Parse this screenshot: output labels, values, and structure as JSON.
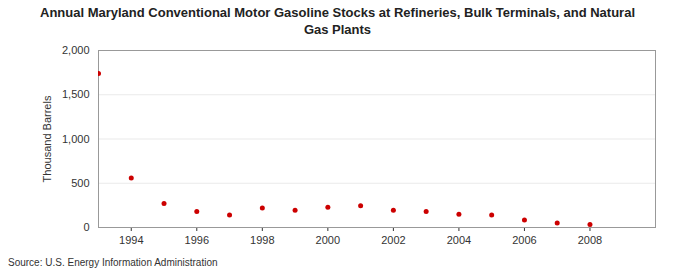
{
  "chart_data": {
    "type": "scatter",
    "title": "Annual Maryland Conventional Motor Gasoline Stocks at Refineries, Bulk Terminals, and Natural Gas Plants",
    "y_label": "Thousand Barrels",
    "caption": "Source: U.S. Energy Information Administration",
    "x": [
      1993,
      1994,
      1995,
      1996,
      1997,
      1998,
      1999,
      2000,
      2001,
      2002,
      2003,
      2004,
      2005,
      2006,
      2007,
      2008
    ],
    "values": [
      1740,
      560,
      270,
      180,
      140,
      220,
      195,
      230,
      245,
      195,
      180,
      150,
      140,
      85,
      50,
      35
    ],
    "color": "#cc0000",
    "marker": "circle",
    "xlim": [
      1993,
      2010
    ],
    "xticks": [
      1994,
      1996,
      1998,
      2000,
      2002,
      2004,
      2006,
      2008
    ],
    "ylim": [
      0,
      2000
    ],
    "yticks": [
      0,
      500,
      {
        "value": 1000,
        "label": "1,000"
      },
      {
        "value": 1500,
        "label": "1,500"
      },
      {
        "value": 2000,
        "label": "2,000"
      }
    ],
    "grid": true
  }
}
